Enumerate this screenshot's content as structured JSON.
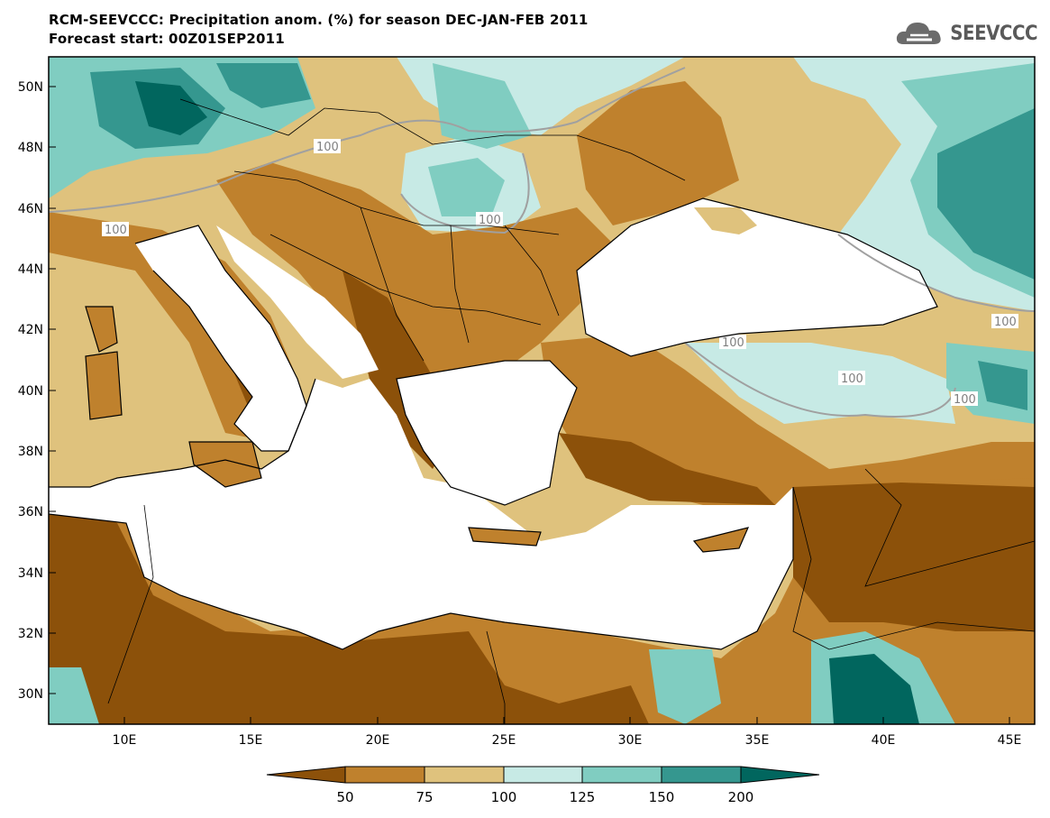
{
  "header": {
    "title": "RCM-SEEVCCC: Precipitation anom. (%) for season DEC-JAN-FEB 2011",
    "subtitle": "Forecast start: 00Z01SEP2011"
  },
  "logo": {
    "text": "SEEVCCC",
    "icon": "cloud-logo-icon"
  },
  "map": {
    "lon_range": [
      7,
      46
    ],
    "lat_range": [
      29,
      51
    ],
    "lon_ticks": [
      "10E",
      "15E",
      "20E",
      "25E",
      "30E",
      "35E",
      "40E",
      "45E"
    ],
    "lat_ticks": [
      "50N",
      "48N",
      "46N",
      "44N",
      "42N",
      "40N",
      "38N",
      "36N",
      "34N",
      "32N",
      "30N"
    ],
    "contour_labels": [
      "100",
      "100",
      "100",
      "100",
      "100",
      "100",
      "100"
    ],
    "colors": {
      "lt50": "#8c510a",
      "c50_75": "#bf812d",
      "c75_100": "#dfc27d",
      "c100_125": "#c7eae5",
      "c125_150": "#80cdc1",
      "c150_200": "#35978f",
      "gt200": "#01665e",
      "sea": "#ffffff",
      "contour": "#a0a0a0"
    }
  },
  "colorbar": {
    "labels": [
      "50",
      "75",
      "100",
      "125",
      "150",
      "200"
    ],
    "colors": [
      "#8c510a",
      "#bf812d",
      "#dfc27d",
      "#c7eae5",
      "#80cdc1",
      "#35978f",
      "#01665e"
    ]
  }
}
